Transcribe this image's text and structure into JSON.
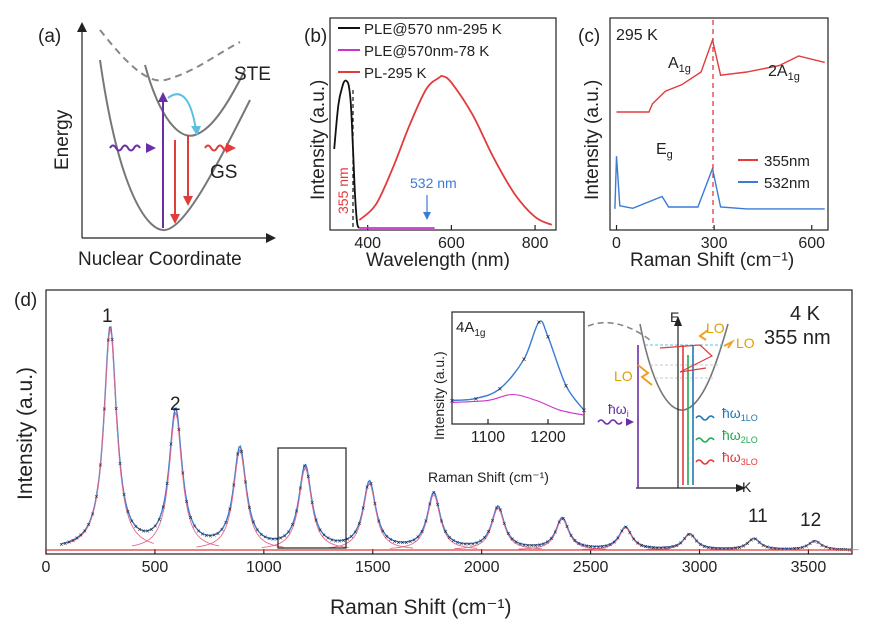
{
  "panel_a": {
    "label": "(a)",
    "y_label": "Energy",
    "x_label": "Nuclear Coordinate",
    "ste_label": "STE",
    "gs_label": "GS"
  },
  "panel_b": {
    "label": "(b)",
    "y_label": "Intensity (a.u.)",
    "x_label": "Wavelength (nm)",
    "legend": [
      "PLE@570 nm-295 K",
      "PLE@570nm-78 K",
      "PL-295 K"
    ],
    "annot_355": "355 nm",
    "annot_532": "532 nm",
    "x_ticks": [
      "400",
      "600",
      "800"
    ],
    "colors": {
      "ple295": "#111111",
      "ple78": "#cc33cc",
      "pl": "#e23b3b"
    }
  },
  "panel_c": {
    "label": "(c)",
    "temp": "295 K",
    "y_label": "Intensity (a.u.)",
    "x_label": "Raman Shift (cm⁻¹)",
    "peak_a1g": "A",
    "peak_a1g_sub": "1g",
    "peak_2a1g": "2A",
    "peak_2a1g_sub": "1g",
    "peak_eg": "E",
    "peak_eg_sub": "g",
    "legend": [
      "355nm",
      "532nm"
    ],
    "x_ticks": [
      "0",
      "300",
      "600"
    ],
    "colors": {
      "nm355": "#e23b3b",
      "nm532": "#3a7bd5"
    }
  },
  "panel_d": {
    "label": "(d)",
    "y_label": "Intensity (a.u.)",
    "x_label": "Raman Shift (cm⁻¹)",
    "temp": "4 K",
    "excitation": "355 nm",
    "peak_labels": [
      "1",
      "2",
      "11",
      "12"
    ],
    "x_ticks": [
      "0",
      "500",
      "1000",
      "1500",
      "2000",
      "2500",
      "3000",
      "3500"
    ],
    "inset": {
      "title": "4A",
      "title_sub": "1g",
      "y_label": "Intensity (a.u.)",
      "x_label": "Raman Shift (cm⁻¹)",
      "x_ticks": [
        "1100",
        "1200"
      ]
    },
    "diagram": {
      "e_label": "E",
      "k_label": "K",
      "lo_label": "LO",
      "hw_i": "ħω",
      "hw_i_sub": "i",
      "hw_1lo": "ħω",
      "hw_1lo_sub": "1LO",
      "hw_2lo": "ħω",
      "hw_2lo_sub": "2LO",
      "hw_3lo": "ħω",
      "hw_3lo_sub": "3LO"
    }
  },
  "chart_data": [
    {
      "type": "line",
      "title": "(b)",
      "xlabel": "Wavelength (nm)",
      "ylabel": "Intensity (a.u.)",
      "xlim": [
        310,
        850
      ],
      "series": [
        {
          "name": "PLE@570 nm-295 K",
          "x": [
            320,
            330,
            340,
            345,
            350,
            355,
            360,
            365,
            370,
            375,
            380
          ],
          "y": [
            0.5,
            0.78,
            0.9,
            0.93,
            0.93,
            0.9,
            0.78,
            0.5,
            0.2,
            0.03,
            0.0
          ]
        },
        {
          "name": "PLE@570nm-78 K",
          "x": [
            380,
            420,
            460,
            500,
            540,
            560
          ],
          "y": [
            0.0,
            0.0,
            0.0,
            0.0,
            0.0,
            0.0
          ]
        },
        {
          "name": "PL-295 K",
          "x": [
            380,
            420,
            460,
            500,
            540,
            570,
            580,
            600,
            650,
            700,
            750,
            800,
            840
          ],
          "y": [
            0.05,
            0.15,
            0.38,
            0.65,
            0.88,
            0.95,
            0.96,
            0.92,
            0.72,
            0.45,
            0.22,
            0.07,
            0.02
          ]
        }
      ]
    },
    {
      "type": "line",
      "title": "(c)",
      "xlabel": "Raman Shift (cm⁻¹)",
      "ylabel": "Intensity (a.u.)",
      "xlim": [
        -20,
        650
      ],
      "series": [
        {
          "name": "355nm",
          "x": [
            0,
            100,
            110,
            150,
            200,
            260,
            295,
            320,
            400,
            500,
            560,
            640
          ],
          "y": [
            0.55,
            0.55,
            0.6,
            0.68,
            0.72,
            0.8,
            1.0,
            0.78,
            0.8,
            0.84,
            0.9,
            0.86
          ]
        },
        {
          "name": "532nm",
          "x": [
            -5,
            0,
            10,
            50,
            140,
            160,
            250,
            295,
            320,
            400,
            640
          ],
          "y": [
            0.05,
            0.9,
            0.1,
            0.06,
            0.25,
            0.08,
            0.08,
            0.7,
            0.08,
            0.05,
            0.05
          ]
        }
      ]
    },
    {
      "type": "line",
      "title": "(d)",
      "xlabel": "Raman Shift (cm⁻¹)",
      "ylabel": "Intensity (a.u.)",
      "xlim": [
        0,
        3700
      ],
      "series": [
        {
          "name": "Raman 4 K 355 nm (peak positions/heights)",
          "x": [
            295,
            595,
            890,
            1190,
            1485,
            1780,
            2075,
            2370,
            2660,
            2955,
            3250,
            3530
          ],
          "y": [
            1.0,
            0.62,
            0.45,
            0.37,
            0.3,
            0.25,
            0.19,
            0.14,
            0.1,
            0.07,
            0.05,
            0.04
          ]
        }
      ]
    },
    {
      "type": "line",
      "title": "inset 4A1g",
      "xlabel": "Raman Shift (cm⁻¹)",
      "ylabel": "Intensity (a.u.)",
      "xlim": [
        1040,
        1260
      ],
      "series": [
        {
          "name": "4A1g peak",
          "x": [
            1040,
            1080,
            1120,
            1160,
            1185,
            1200,
            1230,
            1260
          ],
          "y": [
            0.2,
            0.22,
            0.32,
            0.62,
            1.0,
            0.85,
            0.35,
            0.1
          ]
        }
      ]
    }
  ]
}
